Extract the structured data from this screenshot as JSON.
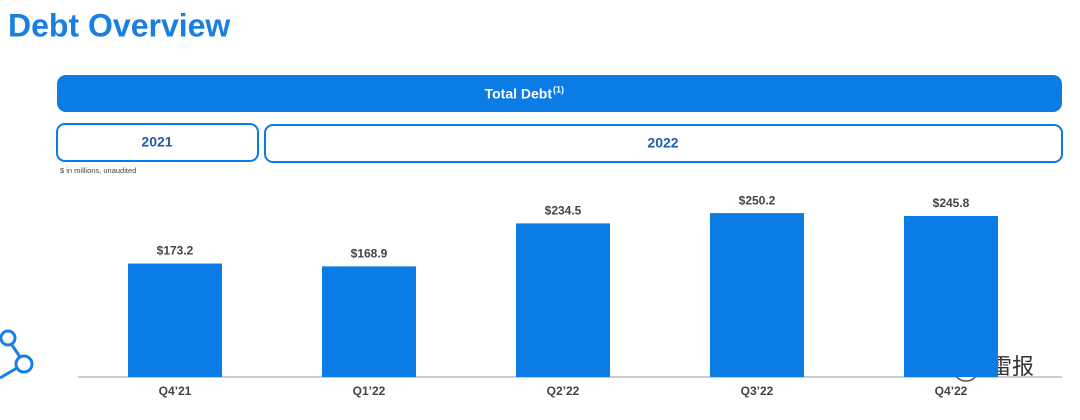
{
  "header": {
    "title": "Debt Overview"
  },
  "banner": {
    "text": "Total Debt",
    "superscript": "(1)"
  },
  "periods": [
    "2021",
    "2022"
  ],
  "note": "$ in millions, unaudited",
  "chart_data": {
    "type": "bar",
    "categories": [
      "Q4’21",
      "Q1’22",
      "Q2’22",
      "Q3’22",
      "Q4’22"
    ],
    "values": [
      173.2,
      168.9,
      234.5,
      250.2,
      245.8
    ],
    "value_labels": [
      "$173.2",
      "$168.9",
      "$234.5",
      "$250.2",
      "$245.8"
    ],
    "color": "#0b7be5"
  },
  "watermark": "雷报"
}
